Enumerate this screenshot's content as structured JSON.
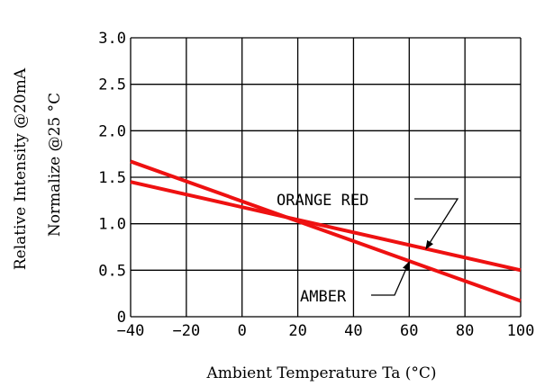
{
  "chart_data": {
    "type": "line",
    "title": "",
    "xlabel": "Ambient Temperature Ta (°C)",
    "ylabel": "Relative Intensity @20mA",
    "ylabel2": "Normalize @25 °C",
    "xlim": [
      -40,
      100
    ],
    "ylim": [
      0,
      3.0
    ],
    "x_ticks": [
      -40,
      -20,
      0,
      20,
      40,
      60,
      80,
      100
    ],
    "x_tick_labels": [
      "−40",
      "−20",
      "0",
      "20",
      "40",
      "60",
      "80",
      "100"
    ],
    "y_ticks": [
      0,
      0.5,
      1.0,
      1.5,
      2.0,
      2.5,
      3.0
    ],
    "y_tick_labels": [
      "0",
      "0.5",
      "1.0",
      "1.5",
      "2.0",
      "2.5",
      "3.0"
    ],
    "grid": true,
    "series": [
      {
        "name": "ORANGE RED",
        "x": [
          -40,
          100
        ],
        "y": [
          1.45,
          0.5
        ]
      },
      {
        "name": "AMBER",
        "x": [
          -40,
          100
        ],
        "y": [
          1.67,
          0.17
        ]
      }
    ],
    "annotations": [
      {
        "text": "ORANGE RED",
        "series": "ORANGE RED",
        "point_x": 66,
        "point_y": 0.73
      },
      {
        "text": "AMBER",
        "series": "AMBER",
        "point_x": 60,
        "point_y": 0.59
      }
    ],
    "colors": {
      "series": "#ee1111",
      "grid": "#000000"
    }
  }
}
